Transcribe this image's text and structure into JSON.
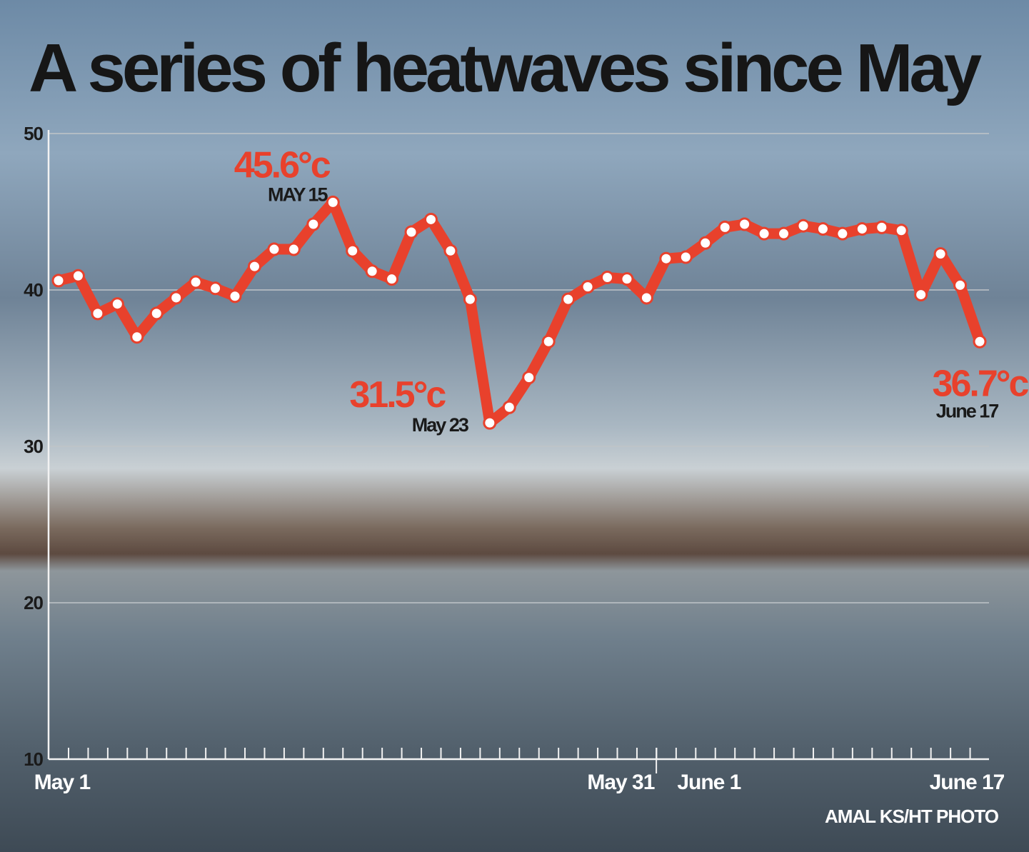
{
  "chart_data": {
    "type": "line",
    "title": "A series of heatwaves since May",
    "ylim": [
      10,
      50
    ],
    "yticks": [
      "10",
      "20",
      "30",
      "40",
      "50"
    ],
    "grid": true,
    "x_tick_labels": [
      "May 1",
      "May 31",
      "June 1",
      "June 17"
    ],
    "x": [
      "May 1",
      "May 2",
      "May 3",
      "May 4",
      "May 5",
      "May 6",
      "May 7",
      "May 8",
      "May 9",
      "May 10",
      "May 11",
      "May 12",
      "May 13",
      "May 14",
      "May 15",
      "May 16",
      "May 17",
      "May 18",
      "May 19",
      "May 20",
      "May 21",
      "May 22",
      "May 23",
      "May 24",
      "May 25",
      "May 26",
      "May 27",
      "May 28",
      "May 29",
      "May 30",
      "May 31",
      "June 1",
      "June 2",
      "June 3",
      "June 4",
      "June 5",
      "June 6",
      "June 7",
      "June 8",
      "June 9",
      "June 10",
      "June 11",
      "June 12",
      "June 13",
      "June 14",
      "June 15",
      "June 16",
      "June 17"
    ],
    "values": [
      40.6,
      40.9,
      38.5,
      39.1,
      37.0,
      38.5,
      39.5,
      40.5,
      40.1,
      39.6,
      41.5,
      42.6,
      42.6,
      44.2,
      45.6,
      42.5,
      41.2,
      40.7,
      43.7,
      44.5,
      42.5,
      39.4,
      31.5,
      32.5,
      34.4,
      36.7,
      39.4,
      40.2,
      40.8,
      40.7,
      39.5,
      42.0,
      42.1,
      43.0,
      44.0,
      44.2,
      43.6,
      43.6,
      44.1,
      43.9,
      43.6,
      43.9,
      44.0,
      43.8,
      39.7,
      42.3,
      40.3,
      36.7
    ],
    "line_color": "#e8412c",
    "marker_fill": "#ffffff",
    "annotations": [
      {
        "value": "45.6°c",
        "date": "MAY 15",
        "index": 14
      },
      {
        "value": "31.5°c",
        "date": "May 23",
        "index": 22
      },
      {
        "value": "36.7°c",
        "date": "June 17",
        "index": 47
      }
    ]
  },
  "credit": "AMAL KS/HT PHOTO"
}
